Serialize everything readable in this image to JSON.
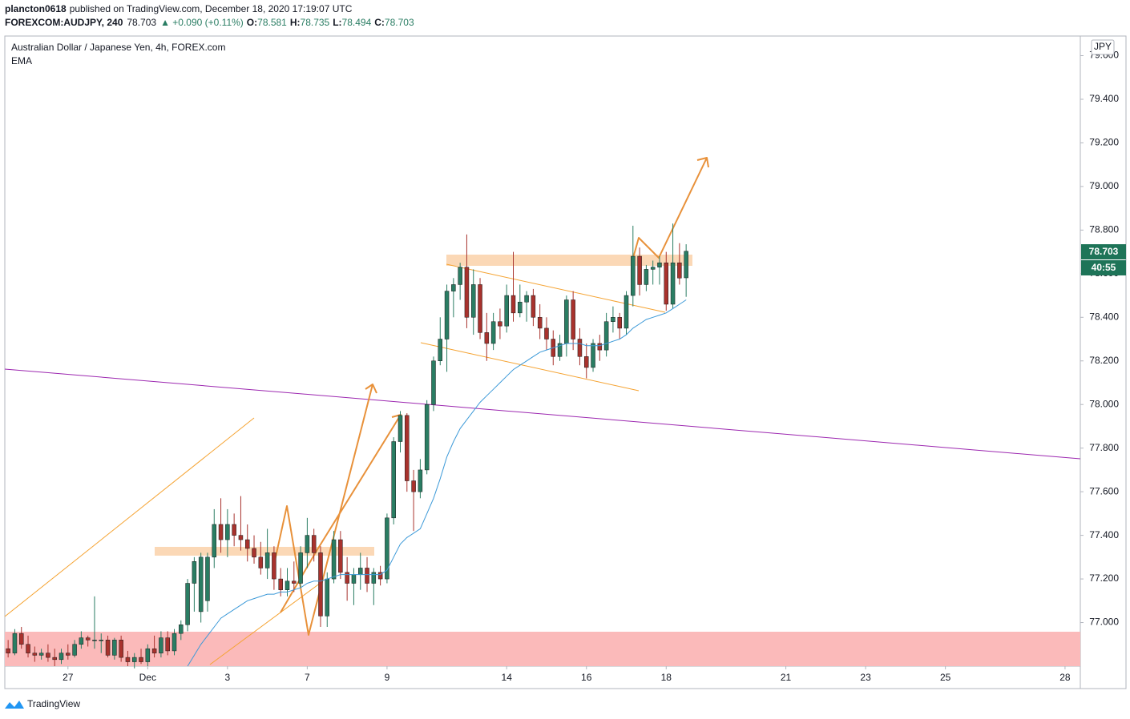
{
  "chart_data": {
    "type": "candlestick",
    "author": "plancton0618",
    "published": "published on TradingView.com, December 18, 2020 17:19:07 UTC",
    "symbol": "FOREXCOM:AUDJPY, 240",
    "last": "78.703",
    "change": "▲ +0.090 (+0.11%)",
    "ohlc_legend": [
      {
        "label": "O:",
        "value": "78.581"
      },
      {
        "label": "H:",
        "value": "78.735"
      },
      {
        "label": "L:",
        "value": "78.494"
      },
      {
        "label": "C:",
        "value": "78.703"
      }
    ],
    "title": "Australian Dollar / Japanese Yen, 4h, FOREX.com",
    "indicator": "EMA",
    "currency": "JPY",
    "price_label": "78.703",
    "countdown": "40:55",
    "brand": "TradingView",
    "up_color": "#2a7d63",
    "down_color": "#a8322d",
    "ema_color": "#3d9ad8",
    "grid": false,
    "xlim": [
      -0.5,
      161.3
    ],
    "ylim": [
      76.8,
      79.69
    ],
    "xticks": [
      {
        "value": 9,
        "label": "27"
      },
      {
        "value": 21,
        "label": "Dec"
      },
      {
        "value": 33,
        "label": "3"
      },
      {
        "value": 45,
        "label": "7"
      },
      {
        "value": 57,
        "label": "9"
      },
      {
        "value": 75,
        "label": "14"
      },
      {
        "value": 87,
        "label": "16"
      },
      {
        "value": 99,
        "label": "18"
      },
      {
        "value": 117,
        "label": "21"
      },
      {
        "value": 129,
        "label": "23"
      },
      {
        "value": 141,
        "label": "25"
      },
      {
        "value": 159,
        "label": "28"
      }
    ],
    "yticks": [
      {
        "value": 77.0,
        "label": "77.000"
      },
      {
        "value": 77.2,
        "label": "77.200"
      },
      {
        "value": 77.4,
        "label": "77.400"
      },
      {
        "value": 77.6,
        "label": "77.600"
      },
      {
        "value": 77.8,
        "label": "77.800"
      },
      {
        "value": 78.0,
        "label": "78.000"
      },
      {
        "value": 78.2,
        "label": "78.200"
      },
      {
        "value": 78.4,
        "label": "78.400"
      },
      {
        "value": 78.6,
        "label": "78.600"
      },
      {
        "value": 78.8,
        "label": "78.800"
      },
      {
        "value": 79.0,
        "label": "79.000"
      },
      {
        "value": 79.2,
        "label": "79.200"
      },
      {
        "value": 79.4,
        "label": "79.400"
      },
      {
        "value": 79.6,
        "label": "79.600"
      }
    ],
    "open": [
      76.88,
      76.86,
      76.95,
      76.9,
      76.86,
      76.85,
      76.86,
      76.84,
      76.83,
      76.86,
      76.85,
      76.9,
      76.93,
      76.92,
      76.92,
      76.92,
      76.85,
      76.92,
      76.84,
      76.82,
      76.84,
      76.82,
      76.88,
      76.86,
      76.93,
      76.87,
      76.95,
      76.99,
      77.18,
      77.05,
      77.1,
      77.3,
      77.45,
      77.38,
      77.45,
      77.4,
      77.38,
      77.34,
      77.3,
      77.25,
      77.32,
      77.2,
      77.15,
      77.19,
      77.18,
      77.32,
      77.4,
      77.32,
      77.03,
      77.2,
      77.38,
      77.23,
      77.18,
      77.22,
      77.25,
      77.18,
      77.23,
      77.2,
      77.48,
      77.83,
      77.95,
      77.65,
      77.6,
      77.7,
      78.0,
      78.2,
      78.3,
      78.52,
      78.55,
      78.63,
      78.4,
      78.55,
      78.33,
      78.28,
      78.38,
      78.36,
      78.5,
      78.42,
      78.47,
      78.5,
      78.4,
      78.35,
      78.3,
      78.22,
      78.28,
      78.48,
      78.3,
      78.22,
      78.17,
      78.28,
      78.25,
      78.38,
      78.4,
      78.35,
      78.5,
      78.68,
      78.55,
      78.62,
      78.63,
      78.65,
      78.46,
      78.65,
      78.581
    ],
    "high": [
      76.92,
      76.97,
      76.98,
      76.94,
      76.89,
      76.88,
      76.9,
      76.88,
      76.88,
      76.9,
      76.92,
      76.96,
      76.94,
      77.12,
      76.95,
      76.94,
      76.93,
      76.94,
      76.87,
      76.86,
      76.88,
      76.9,
      76.94,
      76.96,
      76.96,
      76.97,
      77.01,
      77.2,
      77.3,
      77.32,
      77.32,
      77.52,
      77.57,
      77.52,
      77.5,
      77.58,
      77.45,
      77.4,
      77.37,
      77.43,
      77.35,
      77.25,
      77.25,
      77.28,
      77.35,
      77.48,
      77.43,
      77.35,
      77.23,
      77.42,
      77.42,
      77.3,
      77.25,
      77.32,
      77.3,
      77.25,
      77.26,
      77.5,
      77.85,
      77.97,
      77.96,
      77.7,
      77.75,
      78.02,
      78.22,
      78.4,
      78.55,
      78.58,
      78.65,
      78.78,
      78.62,
      78.58,
      78.42,
      78.42,
      78.44,
      78.55,
      78.7,
      78.55,
      78.52,
      78.53,
      78.46,
      78.4,
      78.34,
      78.32,
      78.5,
      78.52,
      78.35,
      78.28,
      78.3,
      78.32,
      78.42,
      78.45,
      78.42,
      78.52,
      78.82,
      78.72,
      78.64,
      78.66,
      78.68,
      78.7,
      78.83,
      78.74,
      78.735
    ],
    "low": [
      76.84,
      76.85,
      76.88,
      76.84,
      76.82,
      76.83,
      76.82,
      76.8,
      76.81,
      76.83,
      76.84,
      76.88,
      76.89,
      76.88,
      76.86,
      76.84,
      76.83,
      76.82,
      76.8,
      76.79,
      76.81,
      76.8,
      76.84,
      76.84,
      76.85,
      76.85,
      76.92,
      76.96,
      77.05,
      77.0,
      77.05,
      77.25,
      77.32,
      77.3,
      77.35,
      77.33,
      77.28,
      77.27,
      77.22,
      77.2,
      77.15,
      77.12,
      77.12,
      77.14,
      77.16,
      77.25,
      77.28,
      76.98,
      76.98,
      77.18,
      77.2,
      77.1,
      77.08,
      77.15,
      77.14,
      77.08,
      77.17,
      77.18,
      77.45,
      77.78,
      77.6,
      77.42,
      77.57,
      77.68,
      77.97,
      78.18,
      78.15,
      78.4,
      78.48,
      78.35,
      78.32,
      78.3,
      78.2,
      78.25,
      78.3,
      78.33,
      78.38,
      78.4,
      78.38,
      78.36,
      78.3,
      78.25,
      78.18,
      78.2,
      78.22,
      78.25,
      78.18,
      78.12,
      78.15,
      78.2,
      78.22,
      78.33,
      78.3,
      78.32,
      78.45,
      78.5,
      78.52,
      78.55,
      78.55,
      78.43,
      78.44,
      78.55,
      78.494
    ],
    "close": [
      76.86,
      76.95,
      76.9,
      76.86,
      76.85,
      76.86,
      76.84,
      76.83,
      76.86,
      76.85,
      76.9,
      76.93,
      76.92,
      76.92,
      76.92,
      76.85,
      76.92,
      76.84,
      76.82,
      76.84,
      76.82,
      76.88,
      76.86,
      76.93,
      76.87,
      76.95,
      76.99,
      77.18,
      77.28,
      77.3,
      77.3,
      77.45,
      77.38,
      77.45,
      77.4,
      77.38,
      77.34,
      77.3,
      77.25,
      77.32,
      77.2,
      77.15,
      77.19,
      77.18,
      77.32,
      77.4,
      77.32,
      77.03,
      77.2,
      77.38,
      77.23,
      77.18,
      77.22,
      77.25,
      77.18,
      77.23,
      77.2,
      77.48,
      77.83,
      77.95,
      77.65,
      77.6,
      77.7,
      78.0,
      78.2,
      78.3,
      78.52,
      78.55,
      78.63,
      78.4,
      78.55,
      78.33,
      78.28,
      78.38,
      78.36,
      78.5,
      78.42,
      78.47,
      78.5,
      78.4,
      78.35,
      78.3,
      78.22,
      78.28,
      78.48,
      78.3,
      78.22,
      78.17,
      78.28,
      78.25,
      78.38,
      78.4,
      78.35,
      78.5,
      78.68,
      78.55,
      78.62,
      78.63,
      78.65,
      78.46,
      78.65,
      78.58,
      78.703
    ],
    "ema": [
      null,
      null,
      null,
      null,
      null,
      null,
      null,
      null,
      null,
      null,
      null,
      null,
      null,
      null,
      null,
      null,
      null,
      null,
      null,
      null,
      null,
      null,
      null,
      null,
      null,
      null,
      null,
      76.8,
      76.85,
      76.9,
      76.94,
      76.98,
      77.02,
      77.04,
      77.06,
      77.08,
      77.1,
      77.11,
      77.12,
      77.13,
      77.13,
      77.14,
      77.14,
      77.15,
      77.16,
      77.18,
      77.19,
      77.19,
      77.2,
      77.21,
      77.22,
      77.22,
      77.22,
      77.22,
      77.22,
      77.22,
      77.22,
      77.24,
      77.3,
      77.36,
      77.39,
      77.41,
      77.43,
      77.5,
      77.57,
      77.66,
      77.76,
      77.83,
      77.89,
      77.93,
      77.97,
      78.01,
      78.04,
      78.07,
      78.1,
      78.13,
      78.16,
      78.18,
      78.2,
      78.22,
      78.24,
      78.25,
      78.26,
      78.27,
      78.28,
      78.28,
      78.28,
      78.27,
      78.27,
      78.27,
      78.28,
      78.29,
      78.3,
      78.32,
      78.35,
      78.37,
      78.39,
      78.4,
      78.41,
      78.42,
      78.44,
      78.46,
      78.48
    ]
  }
}
